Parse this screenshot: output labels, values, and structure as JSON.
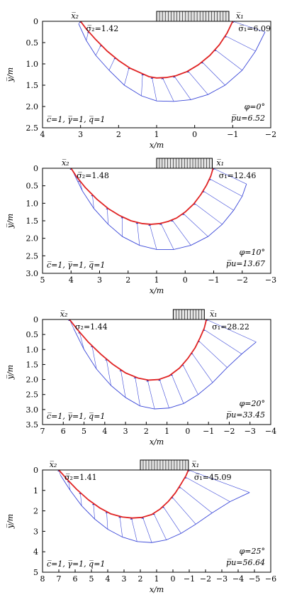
{
  "chart_data": [
    {
      "type": "line",
      "xlabel": "x/m",
      "ylabel": "y̅/m",
      "xlim": [
        4,
        -2
      ],
      "ylim": [
        0,
        2.5
      ],
      "xticks": [
        "4",
        "3",
        "2",
        "1",
        "0",
        "−1",
        "−2"
      ],
      "yticks": [
        "0",
        "0.5",
        "1.0",
        "1.5",
        "2.0",
        "2.5"
      ],
      "load": [
        1.0,
        -0.9
      ],
      "ann": {
        "x2": "x̅₂",
        "x1": "x̅₁",
        "s2": "σ̅₂=1.42",
        "s1": "σ̅₁=6.09",
        "params": "c̅=1, γ̅=1, q̅=1",
        "phi": "φ=0°",
        "pu": "p̅u=6.52"
      },
      "series": [
        {
          "role": "failure-surface",
          "x": [
            3.0,
            2.85,
            2.6,
            2.3,
            2.0,
            1.7,
            1.4,
            1.2,
            1.0,
            0.75,
            0.5,
            0.2,
            -0.1,
            -0.4,
            -0.65,
            -0.85,
            -1.0
          ],
          "y": [
            0,
            0.18,
            0.43,
            0.7,
            0.92,
            1.1,
            1.22,
            1.3,
            1.33,
            1.32,
            1.28,
            1.18,
            1.02,
            0.8,
            0.55,
            0.28,
            0
          ]
        },
        {
          "role": "stress-envelope",
          "x": [
            3.05,
            2.85,
            2.6,
            2.25,
            1.85,
            1.4,
            1.0,
            0.55,
            0.1,
            -0.35,
            -0.8,
            -1.25,
            -1.6,
            -1.85
          ],
          "y": [
            0.06,
            0.45,
            0.8,
            1.15,
            1.5,
            1.75,
            1.87,
            1.88,
            1.84,
            1.72,
            1.5,
            1.15,
            0.7,
            0.25
          ]
        }
      ]
    },
    {
      "type": "line",
      "xlabel": "x/m",
      "ylabel": "y̅/m",
      "xlim": [
        5,
        -3
      ],
      "ylim": [
        0,
        3.0
      ],
      "xticks": [
        "5",
        "4",
        "3",
        "2",
        "1",
        "0",
        "−1",
        "−2",
        "−3"
      ],
      "yticks": [
        "0",
        "0.5",
        "1.0",
        "1.5",
        "2.0",
        "2.5",
        "3.0"
      ],
      "load": [
        1.0,
        -0.95
      ],
      "ann": {
        "x2": "x̅₂",
        "x1": "x̅₁",
        "s2": "σ̅₂=1.48",
        "s1": "σ₁=12.46",
        "params": "c̅=1, γ̅=1, q̅=1",
        "phi": "φ=10°",
        "pu": "p̅u=13.67"
      },
      "series": [
        {
          "role": "failure-surface",
          "x": [
            4.0,
            3.8,
            3.5,
            3.1,
            2.7,
            2.3,
            1.9,
            1.5,
            1.2,
            0.9,
            0.6,
            0.3,
            0.0,
            -0.3,
            -0.55,
            -0.75,
            -0.9,
            -0.98
          ],
          "y": [
            0,
            0.25,
            0.55,
            0.88,
            1.15,
            1.35,
            1.5,
            1.58,
            1.6,
            1.58,
            1.52,
            1.42,
            1.25,
            1.02,
            0.75,
            0.48,
            0.22,
            0
          ]
        },
        {
          "role": "stress-envelope",
          "x": [
            3.9,
            3.6,
            3.2,
            2.7,
            2.2,
            1.6,
            1.0,
            0.4,
            -0.2,
            -0.8,
            -1.3,
            -1.7,
            -2.0,
            -2.15
          ],
          "y": [
            0.15,
            0.65,
            1.15,
            1.6,
            1.95,
            2.2,
            2.32,
            2.32,
            2.2,
            1.95,
            1.6,
            1.2,
            0.8,
            0.45
          ]
        }
      ]
    },
    {
      "type": "line",
      "xlabel": "x/m",
      "ylabel": "y̅/m",
      "xlim": [
        7,
        -4
      ],
      "ylim": [
        0,
        3.5
      ],
      "xticks": [
        "7",
        "6",
        "5",
        "4",
        "3",
        "2",
        "1",
        "0",
        "−1",
        "−2",
        "−3",
        "−4"
      ],
      "yticks": [
        "0",
        "0.5",
        "1.0",
        "1.5",
        "2.0",
        "2.5",
        "3.0",
        "3.5"
      ],
      "load": [
        0.7,
        -0.8
      ],
      "ann": {
        "x2": "x̅₂",
        "x1": "x̅₁",
        "s2": "σ₂=1.44",
        "s1": "σ₁=28.22",
        "params": "c̅=1, γ̅=1, q̅=1",
        "phi": "φ=20°",
        "pu": "p̅u=33.45"
      },
      "series": [
        {
          "role": "failure-surface",
          "x": [
            5.7,
            5.3,
            4.8,
            4.2,
            3.6,
            3.0,
            2.4,
            1.9,
            1.4,
            0.9,
            0.4,
            0.0,
            -0.35,
            -0.6,
            -0.8,
            -0.9
          ],
          "y": [
            0,
            0.35,
            0.75,
            1.15,
            1.5,
            1.78,
            1.95,
            2.02,
            2.0,
            1.88,
            1.62,
            1.3,
            0.95,
            0.6,
            0.28,
            0
          ]
        },
        {
          "role": "stress-envelope",
          "x": [
            5.5,
            5.0,
            4.4,
            3.7,
            3.0,
            2.3,
            1.6,
            0.9,
            0.2,
            -0.5,
            -1.2,
            -1.9,
            -2.6,
            -3.3
          ],
          "y": [
            0.3,
            1.0,
            1.65,
            2.2,
            2.6,
            2.88,
            2.98,
            2.95,
            2.8,
            2.5,
            2.1,
            1.6,
            1.15,
            0.75
          ]
        }
      ]
    },
    {
      "type": "line",
      "xlabel": "x/m",
      "ylabel": "y̅/m",
      "xlim": [
        8,
        -6
      ],
      "ylim": [
        0,
        5
      ],
      "xticks": [
        "8",
        "7",
        "6",
        "5",
        "4",
        "3",
        "2",
        "1",
        "0",
        "−1",
        "−2",
        "−3",
        "−4",
        "−5",
        "−6"
      ],
      "yticks": [
        "0",
        "1",
        "2",
        "3",
        "4",
        "5"
      ],
      "load": [
        2.0,
        -0.95
      ],
      "ann": {
        "x2": "x̅₂",
        "x1": "x̅₁",
        "s2": "σ̅₂=1.41",
        "s1": "σ̅₁=45.09",
        "params": "c̅=1, γ̅=1, q̅=1",
        "phi": "φ=25°",
        "pu": "p̅u=56.64"
      },
      "series": [
        {
          "role": "failure-surface",
          "x": [
            7.0,
            6.5,
            5.9,
            5.2,
            4.5,
            3.8,
            3.1,
            2.5,
            1.9,
            1.3,
            0.8,
            0.3,
            -0.15,
            -0.5,
            -0.8,
            -0.95
          ],
          "y": [
            0,
            0.45,
            0.95,
            1.45,
            1.85,
            2.15,
            2.3,
            2.35,
            2.32,
            2.18,
            1.92,
            1.55,
            1.12,
            0.68,
            0.28,
            0
          ]
        },
        {
          "role": "stress-envelope",
          "x": [
            6.9,
            6.3,
            5.6,
            4.8,
            4.0,
            3.1,
            2.2,
            1.3,
            0.4,
            -0.5,
            -1.4,
            -2.4,
            -3.5,
            -4.7
          ],
          "y": [
            0.25,
            1.0,
            1.75,
            2.4,
            2.9,
            3.28,
            3.5,
            3.55,
            3.42,
            3.1,
            2.65,
            2.1,
            1.55,
            1.1
          ]
        }
      ]
    }
  ]
}
